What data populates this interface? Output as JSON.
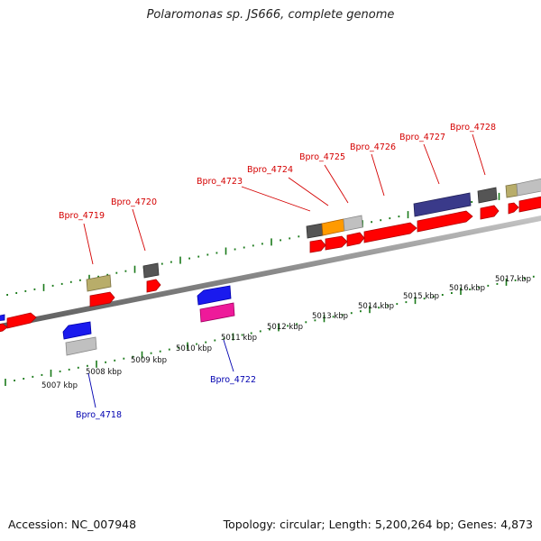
{
  "title": "Polaromonas sp. JS666, complete genome",
  "accession": "Accession: NC_007948",
  "summary": "Topology: circular; Length: 5,200,264 bp; Genes: 4,873",
  "kbp_labels": [
    "5007 kbp",
    "5008 kbp",
    "5009 kbp",
    "5010 kbp",
    "5011 kbp",
    "5012 kbp",
    "5013 kbp",
    "5014 kbp",
    "5015 kbp",
    "5016 kbp",
    "5017 kbp"
  ],
  "gene_labels_forward": [
    "Bpro_4719",
    "Bpro_4720",
    "Bpro_4723",
    "Bpro_4724",
    "Bpro_4725",
    "Bpro_4726",
    "Bpro_4727",
    "Bpro_4728"
  ],
  "gene_labels_reverse": [
    "Bpro_4718",
    "Bpro_4722"
  ],
  "colors": {
    "cds": "#ff0000",
    "blue_feature": "#1a1aee",
    "magenta_feature": "#ee1a9a",
    "gray_feature": "#c0c0c0",
    "dark_gray_feature": "#555555",
    "olive_feature": "#b8ad6a",
    "orange_feature": "#ff9a00",
    "navy_feature": "#3a3a8a",
    "ticks": "#1a7a1a",
    "backbone": "#888888"
  }
}
